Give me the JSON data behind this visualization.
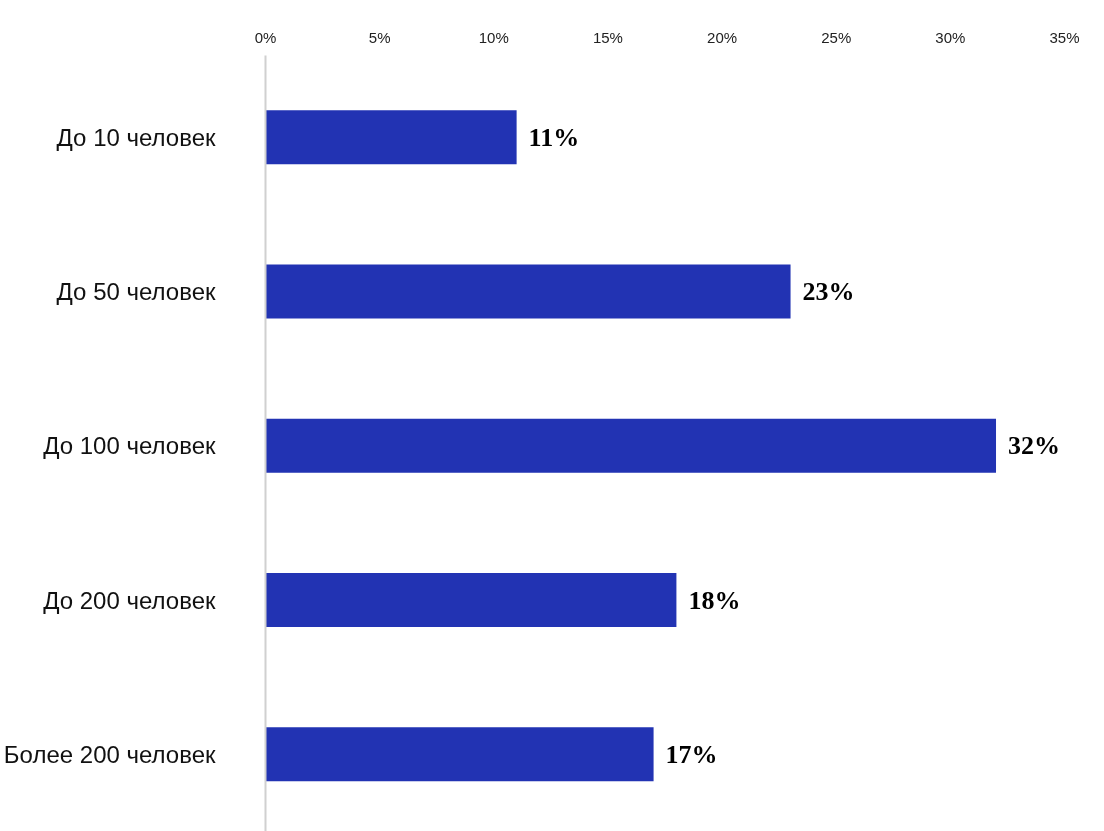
{
  "chart_data": {
    "type": "bar",
    "orientation": "horizontal",
    "categories": [
      "До 10 человек",
      "До 50 человек",
      "До 100 человек",
      "До 200 человек",
      "Более 200 человек"
    ],
    "values": [
      11,
      23,
      32,
      18,
      17
    ],
    "color": "#2233b3",
    "value_labels": [
      "11%",
      "23%",
      "32%",
      "18%",
      "17%"
    ],
    "xlim": [
      0,
      35
    ],
    "xticks": [
      {
        "value": 0,
        "label": "0%"
      },
      {
        "value": 5,
        "label": "5%"
      },
      {
        "value": 10,
        "label": "10%"
      },
      {
        "value": 15,
        "label": "15%"
      },
      {
        "value": 20,
        "label": "20%"
      },
      {
        "value": 25,
        "label": "25%"
      },
      {
        "value": 30,
        "label": "30%"
      },
      {
        "value": 35,
        "label": "35%"
      }
    ],
    "grid": false
  }
}
